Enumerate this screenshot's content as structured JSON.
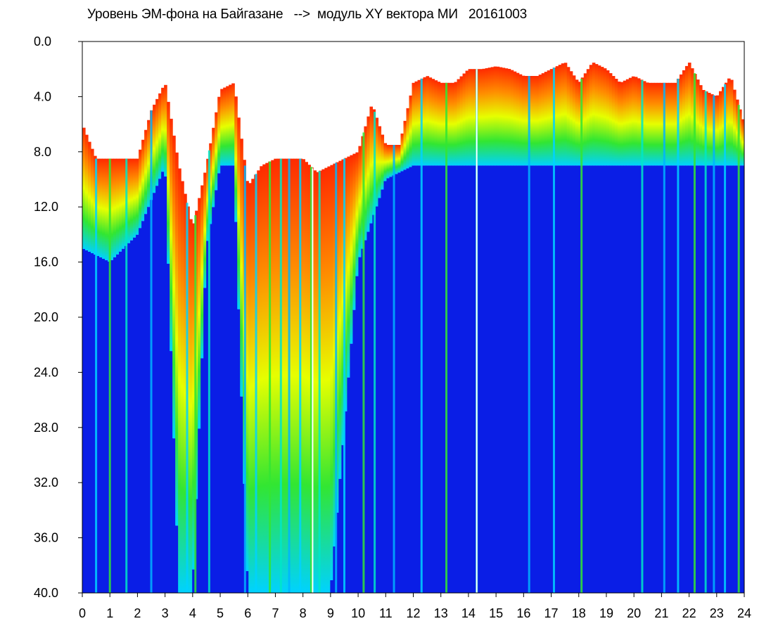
{
  "chart_data": {
    "type": "heatmap",
    "title": "Уровень ЭМ-фона на Байгазане   -->  модуль XY вектора МИ   20161003",
    "xlabel": "",
    "ylabel": "",
    "xlim": [
      0,
      24
    ],
    "ylim": [
      0.0,
      40.0
    ],
    "y_inverted": true,
    "x_ticks": [
      "0",
      "1",
      "2",
      "3",
      "4",
      "5",
      "6",
      "7",
      "8",
      "9",
      "10",
      "11",
      "12",
      "13",
      "14",
      "15",
      "16",
      "17",
      "18",
      "19",
      "20",
      "21",
      "22",
      "23",
      "24"
    ],
    "y_ticks": [
      "0.0",
      "4.0",
      "8.0",
      "12.0",
      "16.0",
      "20.0",
      "24.0",
      "28.0",
      "32.0",
      "36.0",
      "40.0"
    ],
    "colormap": [
      "#ffffff",
      "#ff2a00",
      "#ff8c00",
      "#e6ff00",
      "#32e632",
      "#00d2ff",
      "#0a1ee6"
    ],
    "background_color": "#0a1ee6",
    "grid": false,
    "top_boundary_hours": [
      0,
      0.5,
      1,
      1.5,
      2,
      2.5,
      3,
      3.5,
      4,
      4.5,
      5,
      5.5,
      6,
      6.5,
      7,
      7.5,
      8,
      8.5,
      9,
      9.5,
      10,
      10.5,
      11,
      11.5,
      12,
      12.5,
      13,
      13.5,
      14,
      14.5,
      15,
      15.5,
      16,
      16.5,
      17,
      17.5,
      18,
      18.5,
      19,
      19.5,
      20,
      20.5,
      21,
      21.5,
      22,
      22.5,
      23,
      23.5,
      24
    ],
    "top_boundary_values": [
      6.0,
      8.5,
      8.5,
      8.5,
      8.5,
      5.0,
      3.0,
      9.0,
      13.5,
      9.0,
      3.5,
      3.0,
      10.5,
      9.0,
      8.5,
      8.5,
      8.5,
      9.5,
      9.0,
      8.5,
      8.0,
      4.5,
      7.5,
      7.5,
      3.0,
      2.5,
      3.0,
      3.0,
      2.0,
      2.0,
      1.8,
      2.0,
      2.5,
      2.5,
      2.0,
      1.5,
      3.0,
      1.5,
      2.0,
      3.0,
      2.5,
      3.0,
      3.0,
      3.0,
      1.5,
      3.5,
      4.0,
      2.5,
      6.0
    ],
    "blue_floor_hours": [
      0,
      1,
      2,
      3,
      3.5,
      4,
      4.5,
      5,
      5.5,
      6,
      7,
      8,
      9,
      10,
      11,
      12,
      13,
      14,
      15,
      16,
      17,
      18,
      19,
      20,
      21,
      22,
      23,
      24
    ],
    "blue_floor_values": [
      15.0,
      16.0,
      14.0,
      9.0,
      40.0,
      40.0,
      15.0,
      9.0,
      9.0,
      40.0,
      40.0,
      40.0,
      40.0,
      16.0,
      10.0,
      9.0,
      9.0,
      9.0,
      9.0,
      9.0,
      9.0,
      9.0,
      9.0,
      9.0,
      9.0,
      9.0,
      9.0,
      9.0
    ],
    "vertical_streak_hours": [
      0.5,
      1.0,
      1.6,
      2.5,
      3.8,
      4.1,
      4.6,
      5.9,
      6.3,
      6.8,
      7.2,
      7.5,
      7.9,
      8.3,
      8.6,
      9.2,
      9.5,
      10.2,
      10.6,
      11.3,
      12.3,
      13.2,
      14.3,
      16.2,
      17.1,
      18.1,
      20.3,
      21.1,
      21.6,
      22.2,
      22.6,
      22.9,
      23.3,
      23.8
    ],
    "white_line_hours": [
      8.35,
      14.3
    ]
  }
}
